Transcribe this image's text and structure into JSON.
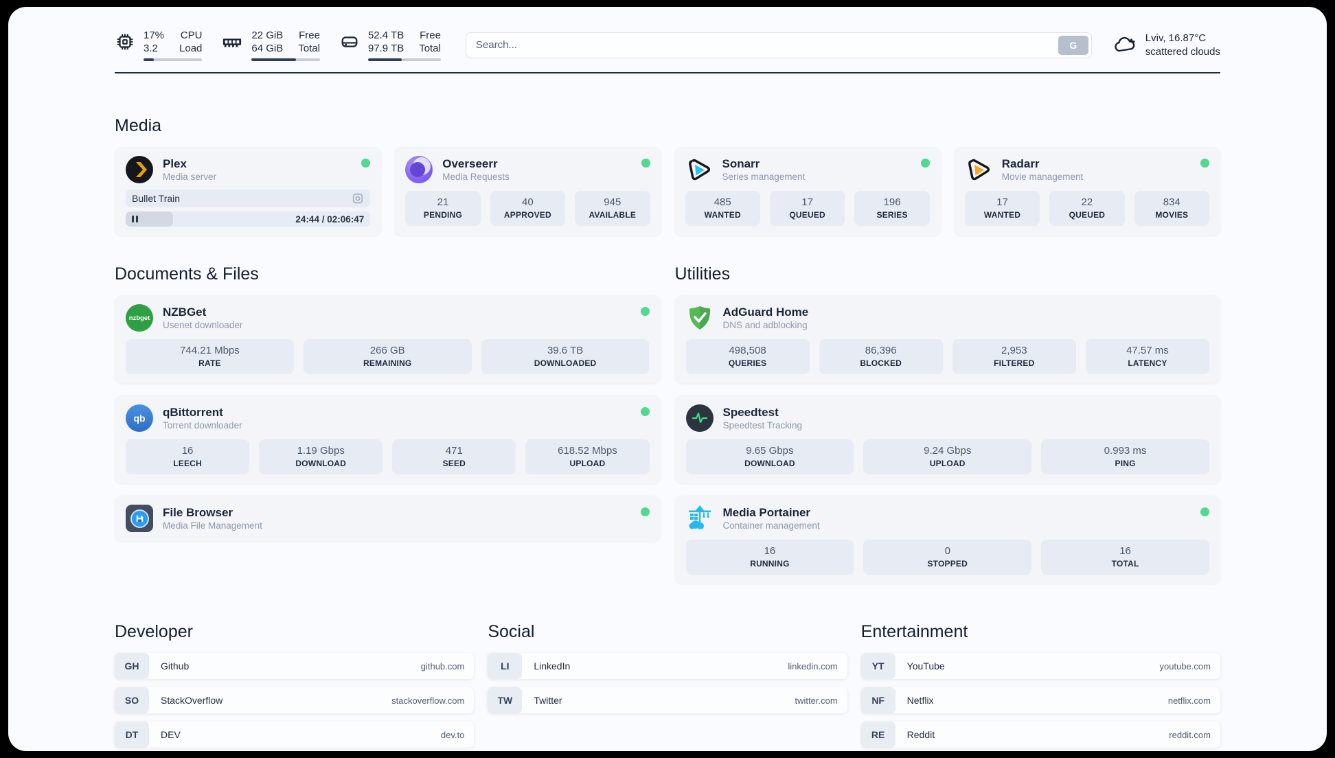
{
  "topbar": {
    "cpu": {
      "value1": "17%",
      "value2": "3.2",
      "label1": "CPU",
      "label2": "Load",
      "percent": 17
    },
    "memory": {
      "value1": "22 GiB",
      "value2": "64 GiB",
      "label1": "Free",
      "label2": "Total",
      "percent": 65
    },
    "disk": {
      "value1": "52.4 TB",
      "value2": "97.9 TB",
      "label1": "Free",
      "label2": "Total",
      "percent": 46
    },
    "search": {
      "placeholder": "Search...",
      "button_label": "G"
    },
    "weather": {
      "location": "Lviv, 16.87°C",
      "condition": "scattered clouds"
    }
  },
  "sections": {
    "media": "Media",
    "documents": "Documents & Files",
    "utilities": "Utilities",
    "developer": "Developer",
    "social": "Social",
    "entertainment": "Entertainment"
  },
  "apps": {
    "plex": {
      "name": "Plex",
      "description": "Media server",
      "now_playing": "Bullet Train",
      "time": "24:44 / 02:06:47",
      "progress_percent": 19.5
    },
    "overseerr": {
      "name": "Overseerr",
      "description": "Media Requests",
      "stats": [
        {
          "value": "21",
          "label": "PENDING"
        },
        {
          "value": "40",
          "label": "APPROVED"
        },
        {
          "value": "945",
          "label": "AVAILABLE"
        }
      ]
    },
    "sonarr": {
      "name": "Sonarr",
      "description": "Series management",
      "stats": [
        {
          "value": "485",
          "label": "WANTED"
        },
        {
          "value": "17",
          "label": "QUEUED"
        },
        {
          "value": "196",
          "label": "SERIES"
        }
      ]
    },
    "radarr": {
      "name": "Radarr",
      "description": "Movie management",
      "stats": [
        {
          "value": "17",
          "label": "WANTED"
        },
        {
          "value": "22",
          "label": "QUEUED"
        },
        {
          "value": "834",
          "label": "MOVIES"
        }
      ]
    },
    "nzbget": {
      "name": "NZBGet",
      "description": "Usenet downloader",
      "icon_text": "nzbget",
      "stats": [
        {
          "value": "744.21 Mbps",
          "label": "RATE"
        },
        {
          "value": "266 GB",
          "label": "REMAINING"
        },
        {
          "value": "39.6 TB",
          "label": "DOWNLOADED"
        }
      ]
    },
    "qbittorrent": {
      "name": "qBittorrent",
      "description": "Torrent downloader",
      "icon_text": "qb",
      "stats": [
        {
          "value": "16",
          "label": "LEECH"
        },
        {
          "value": "1.19 Gbps",
          "label": "DOWNLOAD"
        },
        {
          "value": "471",
          "label": "SEED"
        },
        {
          "value": "618.52 Mbps",
          "label": "UPLOAD"
        }
      ]
    },
    "filebrowser": {
      "name": "File Browser",
      "description": "Media File Management"
    },
    "adguard": {
      "name": "AdGuard Home",
      "description": "DNS and adblocking",
      "stats": [
        {
          "value": "498,508",
          "label": "QUERIES"
        },
        {
          "value": "86,396",
          "label": "BLOCKED"
        },
        {
          "value": "2,953",
          "label": "FILTERED"
        },
        {
          "value": "47.57 ms",
          "label": "LATENCY"
        }
      ]
    },
    "speedtest": {
      "name": "Speedtest",
      "description": "Speedtest Tracking",
      "stats": [
        {
          "value": "9.65 Gbps",
          "label": "DOWNLOAD"
        },
        {
          "value": "9.24 Gbps",
          "label": "UPLOAD"
        },
        {
          "value": "0.993 ms",
          "label": "PING"
        }
      ]
    },
    "portainer": {
      "name": "Media Portainer",
      "description": "Container management",
      "stats": [
        {
          "value": "16",
          "label": "RUNNING"
        },
        {
          "value": "0",
          "label": "STOPPED"
        },
        {
          "value": "16",
          "label": "TOTAL"
        }
      ]
    }
  },
  "bookmarks": {
    "developer": [
      {
        "abbr": "GH",
        "name": "Github",
        "url": "github.com"
      },
      {
        "abbr": "SO",
        "name": "StackOverflow",
        "url": "stackoverflow.com"
      },
      {
        "abbr": "DT",
        "name": "DEV",
        "url": "dev.to"
      }
    ],
    "social": [
      {
        "abbr": "LI",
        "name": "LinkedIn",
        "url": "linkedin.com"
      },
      {
        "abbr": "TW",
        "name": "Twitter",
        "url": "twitter.com"
      }
    ],
    "entertainment": [
      {
        "abbr": "YT",
        "name": "YouTube",
        "url": "youtube.com"
      },
      {
        "abbr": "NF",
        "name": "Netflix",
        "url": "netflix.com"
      },
      {
        "abbr": "RE",
        "name": "Reddit",
        "url": "reddit.com"
      }
    ]
  },
  "colors": {
    "status_online": "#51d98e",
    "accent_dark": "#1f2a3e",
    "plex_gold": "#e5a00d",
    "sonarr_cyan": "#29c5e8",
    "radarr_amber": "#f5a623"
  }
}
